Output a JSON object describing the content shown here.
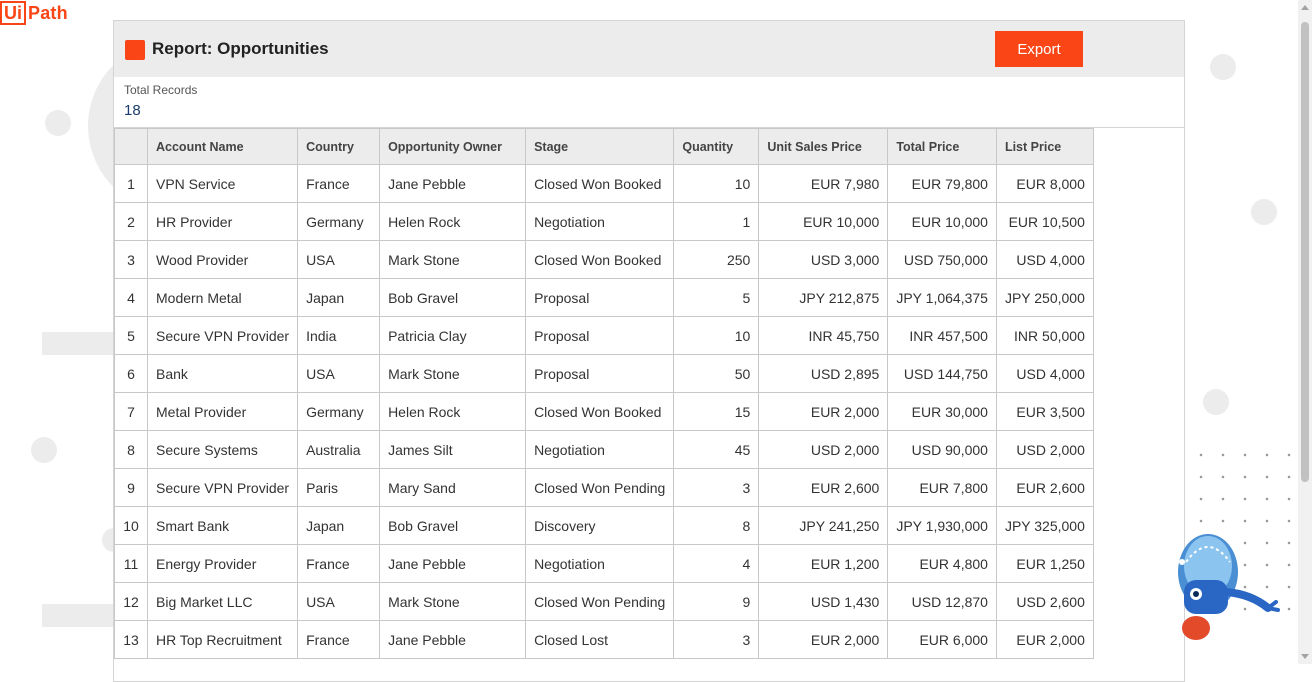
{
  "logo": {
    "box": "Ui",
    "text": "Path"
  },
  "report": {
    "title": "Report: Opportunities",
    "export_label": "Export",
    "total_label": "Total Records",
    "total_value": "18"
  },
  "table": {
    "headers": [
      "",
      "Account Name",
      "Country",
      "Opportunity Owner",
      "Stage",
      "Quantity",
      "Unit Sales Price",
      "Total Price",
      "List Price"
    ],
    "rows": [
      [
        "1",
        "VPN Service",
        "France",
        "Jane Pebble",
        "Closed Won Booked",
        "10",
        "EUR 7,980",
        "EUR 79,800",
        "EUR 8,000"
      ],
      [
        "2",
        "HR Provider",
        "Germany",
        "Helen Rock",
        "Negotiation",
        "1",
        "EUR 10,000",
        "EUR 10,000",
        "EUR 10,500"
      ],
      [
        "3",
        "Wood Provider",
        "USA",
        "Mark Stone",
        "Closed Won Booked",
        "250",
        "USD 3,000",
        "USD 750,000",
        "USD 4,000"
      ],
      [
        "4",
        "Modern Metal",
        "Japan",
        "Bob Gravel",
        "Proposal",
        "5",
        "JPY 212,875",
        "JPY 1,064,375",
        "JPY 250,000"
      ],
      [
        "5",
        "Secure VPN Provider",
        "India",
        "Patricia Clay",
        "Proposal",
        "10",
        "INR 45,750",
        "INR 457,500",
        "INR 50,000"
      ],
      [
        "6",
        "Bank",
        "USA",
        "Mark Stone",
        "Proposal",
        "50",
        "USD 2,895",
        "USD 144,750",
        "USD 4,000"
      ],
      [
        "7",
        "Metal Provider",
        "Germany",
        "Helen Rock",
        "Closed Won Booked",
        "15",
        "EUR 2,000",
        "EUR 30,000",
        "EUR 3,500"
      ],
      [
        "8",
        "Secure Systems",
        "Australia",
        "James Silt",
        "Negotiation",
        "45",
        "USD 2,000",
        "USD 90,000",
        "USD 2,000"
      ],
      [
        "9",
        "Secure VPN Provider",
        "Paris",
        "Mary Sand",
        "Closed Won Pending",
        "3",
        "EUR 2,600",
        "EUR 7,800",
        "EUR 2,600"
      ],
      [
        "10",
        "Smart Bank",
        "Japan",
        "Bob Gravel",
        "Discovery",
        "8",
        "JPY 241,250",
        "JPY 1,930,000",
        "JPY 325,000"
      ],
      [
        "11",
        "Energy Provider",
        "France",
        "Jane Pebble",
        "Negotiation",
        "4",
        "EUR 1,200",
        "EUR 4,800",
        "EUR 1,250"
      ],
      [
        "12",
        "Big Market LLC",
        "USA",
        "Mark Stone",
        "Closed Won Pending",
        "9",
        "USD 1,430",
        "USD 12,870",
        "USD 2,600"
      ],
      [
        "13",
        "HR Top Recruitment",
        "France",
        "Jane Pebble",
        "Closed Lost",
        "3",
        "EUR 2,000",
        "EUR 6,000",
        "EUR 2,000"
      ]
    ]
  },
  "colors": {
    "accent": "#fa4616",
    "header_bg": "#ececec",
    "total_value": "#1a3d6b"
  },
  "icons": {
    "report": "report-square-icon",
    "mascot": "robot-mascot-icon"
  }
}
